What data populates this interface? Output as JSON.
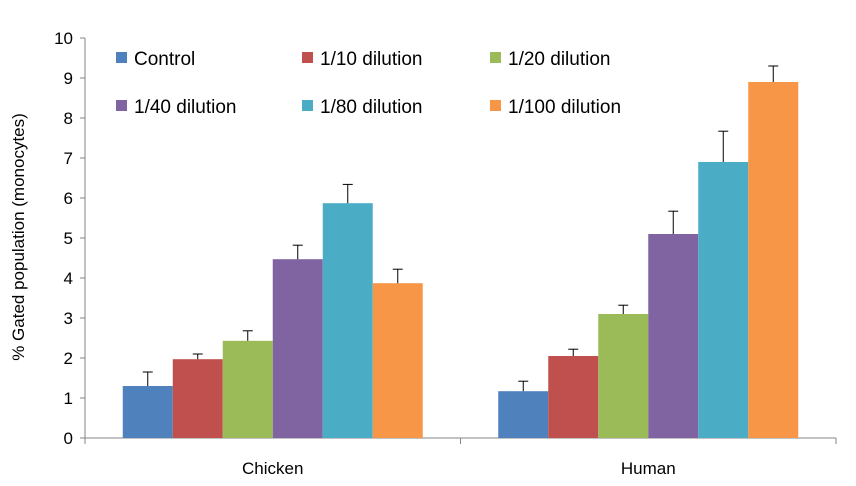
{
  "chart_data": {
    "type": "bar",
    "title": "",
    "xlabel": "",
    "ylabel": "% Gated population  (monocytes)",
    "ylim": [
      0,
      10
    ],
    "yticks": [
      0,
      1,
      2,
      3,
      4,
      5,
      6,
      7,
      8,
      9,
      10
    ],
    "categories": [
      "Chicken",
      "Human"
    ],
    "grid": false,
    "legend_position": "top-left",
    "series": [
      {
        "name": "Control",
        "color": "#4F81BD",
        "values": [
          1.3,
          1.17
        ],
        "errors": [
          0.35,
          0.25
        ]
      },
      {
        "name": "1/10 dilution",
        "color": "#C0504D",
        "values": [
          1.97,
          2.05
        ],
        "errors": [
          0.13,
          0.17
        ]
      },
      {
        "name": "1/20 dilution",
        "color": "#9BBB59",
        "values": [
          2.43,
          3.1
        ],
        "errors": [
          0.25,
          0.22
        ]
      },
      {
        "name": "1/40 dilution",
        "color": "#8064A2",
        "values": [
          4.47,
          5.1
        ],
        "errors": [
          0.35,
          0.57
        ]
      },
      {
        "name": "1/80 dilution",
        "color": "#4BACC6",
        "values": [
          5.87,
          6.9
        ],
        "errors": [
          0.47,
          0.77
        ]
      },
      {
        "name": "1/100 dilution",
        "color": "#F79646",
        "values": [
          3.87,
          8.9
        ],
        "errors": [
          0.35,
          0.4
        ]
      }
    ]
  }
}
